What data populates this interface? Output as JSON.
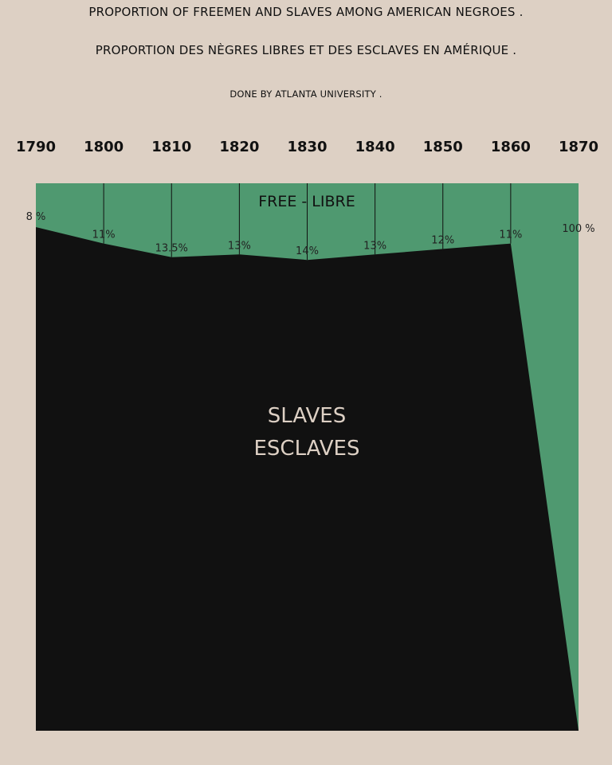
{
  "titles": {
    "line1": "PROPORTION OF FREEMEN AND SLAVES AMONG AMERICAN NEGROES  .",
    "line2": "PROPORTION DES NÈGRES LIBRES ET DES ESCLAVES EN AMÉRIQUE  .",
    "line3": "DONE BY ATLANTA UNIVERSITY ."
  },
  "colors": {
    "background": "#ddd0c4",
    "free": "#4f9970",
    "slaves": "#111111"
  },
  "chart_data": {
    "type": "area",
    "x": [
      1790,
      1800,
      1810,
      1820,
      1830,
      1840,
      1850,
      1860,
      1870
    ],
    "series": [
      {
        "name": "FREE - LIBRE",
        "values": [
          8,
          11,
          13.5,
          13,
          14,
          13,
          12,
          11,
          100
        ],
        "labels": [
          "8 %",
          "11%",
          "13.5%",
          "13%",
          "14%",
          "13%",
          "12%",
          "11%",
          "100 %"
        ]
      },
      {
        "name": "SLAVES ESCLAVES",
        "values": [
          92,
          89,
          86.5,
          87,
          86,
          87,
          88,
          89,
          0
        ]
      }
    ],
    "region_labels": {
      "free": "FREE - LIBRE",
      "slaves_line1": "SLAVES",
      "slaves_line2": "ESCLAVES"
    },
    "x_position": "top",
    "y_axis_inverted": true
  }
}
